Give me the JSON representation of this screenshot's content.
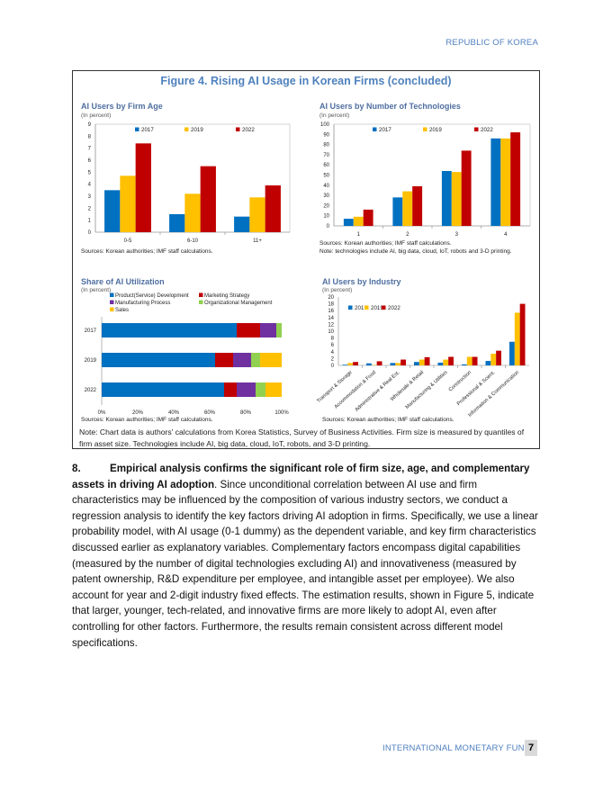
{
  "header": "REPUBLIC OF KOREA",
  "figure_title": "Figure 4. Rising AI Usage in Korean Firms (concluded)",
  "colors": {
    "2017": "#0070c0",
    "2019": "#ffc000",
    "2022": "#c00000",
    "accent": "#4f81bd",
    "green": "#92d050",
    "purple": "#7030a0"
  },
  "chart_data": [
    {
      "type": "bar",
      "title": "AI Users by Firm Age",
      "subtitle": "(In percent)",
      "categories": [
        "0-5",
        "6-10",
        "11+"
      ],
      "series": [
        {
          "name": "2017",
          "values": [
            3.5,
            1.5,
            1.3
          ]
        },
        {
          "name": "2019",
          "values": [
            4.7,
            3.2,
            2.9
          ]
        },
        {
          "name": "2022",
          "values": [
            7.4,
            5.5,
            3.9
          ]
        }
      ],
      "ylim": [
        0,
        9
      ],
      "yticks": [
        0,
        1,
        2,
        3,
        4,
        5,
        6,
        7,
        8,
        9
      ],
      "legend": "top",
      "source": "Sources: Korean authorities; IMF staff calculations."
    },
    {
      "type": "bar",
      "title": "AI Users by Number of Technologies",
      "subtitle": "(In percent)",
      "categories": [
        "1",
        "2",
        "3",
        "4"
      ],
      "series": [
        {
          "name": "2017",
          "values": [
            7,
            28,
            54,
            86
          ]
        },
        {
          "name": "2019",
          "values": [
            9,
            34,
            53,
            86
          ]
        },
        {
          "name": "2022",
          "values": [
            16,
            39,
            74,
            92
          ]
        }
      ],
      "ylim": [
        0,
        100
      ],
      "yticks": [
        0,
        10,
        20,
        30,
        40,
        50,
        60,
        70,
        80,
        90,
        100
      ],
      "legend": "top",
      "source": "Sources: Korean authorities; IMF staff calculations.",
      "note": "Note: technologies include AI, big data, cloud, IoT, robots and 3-D printing."
    },
    {
      "type": "bar",
      "orientation": "horizontal",
      "stacked": true,
      "title": "Share of AI Utilization",
      "subtitle": "(In percent)",
      "categories": [
        "2017",
        "2019",
        "2022"
      ],
      "series": [
        {
          "name": "Product(Service) Development",
          "values": [
            75,
            63,
            68
          ]
        },
        {
          "name": "Marketing Strategy",
          "values": [
            13,
            10,
            7
          ]
        },
        {
          "name": "Manufacturing Process",
          "values": [
            9,
            10,
            10.5
          ]
        },
        {
          "name": "Organizational Management",
          "values": [
            3,
            5,
            5.5
          ]
        },
        {
          "name": "Sales",
          "values": [
            0,
            12,
            9
          ]
        }
      ],
      "xlim": [
        0,
        100
      ],
      "xticks": [
        "0%",
        "20%",
        "40%",
        "60%",
        "80%",
        "100%"
      ],
      "legend": "top",
      "source": "Sources: Korean authorities; IMF staff calculations."
    },
    {
      "type": "bar",
      "title": "AI Users by Industry",
      "subtitle": "(In percent)",
      "categories": [
        "Transport & Storage",
        "Accommodation & Food",
        "Administrative & Real Est.",
        "Wholesale & Retail",
        "Manufacturing & Utilities",
        "Construction",
        "Professional & Scient.",
        "Information & Communication"
      ],
      "series": [
        {
          "name": "2017",
          "values": [
            0.2,
            0.6,
            0.7,
            1.0,
            0.8,
            0.3,
            1.3,
            6.9
          ]
        },
        {
          "name": "2019",
          "values": [
            0.7,
            0.1,
            0.7,
            1.7,
            1.7,
            2.5,
            3.4,
            15.4
          ]
        },
        {
          "name": "2022",
          "values": [
            1.0,
            1.2,
            1.7,
            2.4,
            2.5,
            2.5,
            4.3,
            18.0
          ]
        }
      ],
      "ylim": [
        0,
        20
      ],
      "yticks": [
        0,
        2,
        4,
        6,
        8,
        10,
        12,
        14,
        16,
        18,
        20
      ],
      "legend": "top-left",
      "source": "Sources: Korean authorities; IMF staff calculations."
    }
  ],
  "figure_note": "Note: Chart data is authors' calculations from Korea Statistics, Survey of Business Activities. Firm size is measured by quantiles of firm asset size. Technologies include AI, big data, cloud, IoT, robots, and 3-D printing.",
  "paragraph": {
    "number": "8.",
    "lead": "Empirical analysis confirms the significant role of firm size, age, and complementary assets in driving AI adoption",
    "body": ". Since unconditional correlation between AI use and firm characteristics may be influenced by the composition of various industry sectors, we conduct a regression analysis to identify the key factors driving AI adoption in firms. Specifically, we use a linear probability model, with AI usage (0-1 dummy) as the dependent variable, and key firm characteristics discussed earlier as explanatory variables. Complementary factors encompass digital capabilities (measured by the number of digital technologies excluding AI) and innovativeness (measured by patent ownership, R&D expenditure per employee, and intangible asset per employee). We also account for year and 2-digit industry fixed effects. The estimation results, shown in Figure 5, indicate that larger, younger, tech-related, and innovative firms are more likely to adopt AI, even after controlling for other factors. Furthermore, the results remain consistent across different model specifications."
  },
  "footer": {
    "org": "INTERNATIONAL MONETARY FUND",
    "page": "7"
  }
}
